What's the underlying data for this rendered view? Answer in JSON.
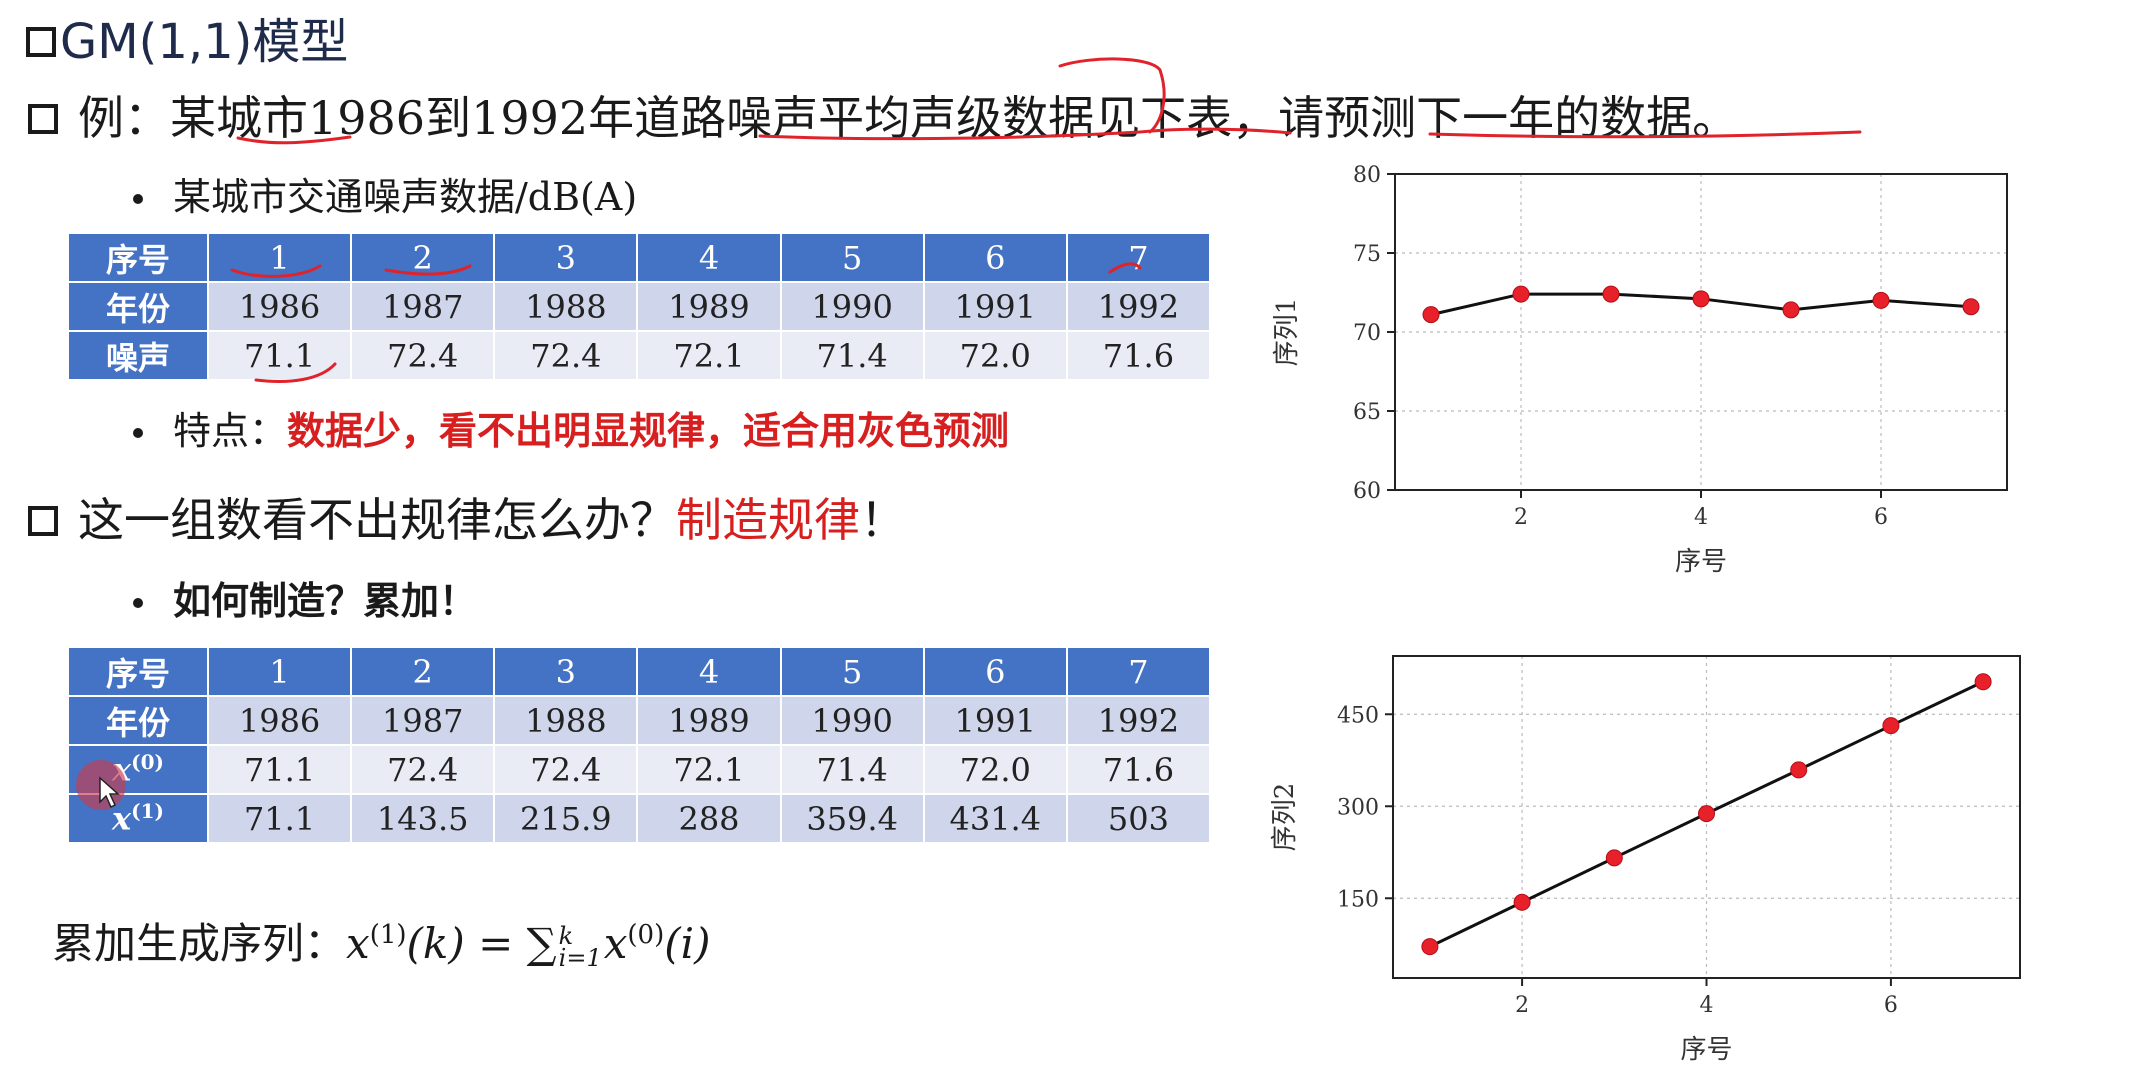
{
  "title": "GM(1,1)模型",
  "example": {
    "prefix": "例：",
    "text": "某城市1986到1992年道路噪声平均声级数据见下表，请预测下一年的数据。"
  },
  "table1_caption": "某城市交通噪声数据/dB(A)",
  "table1": {
    "header_label": "序号",
    "columns": [
      "1",
      "2",
      "3",
      "4",
      "5",
      "6",
      "7"
    ],
    "rows": [
      {
        "label": "年份",
        "values": [
          "1986",
          "1987",
          "1988",
          "1989",
          "1990",
          "1991",
          "1992"
        ]
      },
      {
        "label": "噪声",
        "values": [
          "71.1",
          "72.4",
          "72.4",
          "72.1",
          "71.4",
          "72.0",
          "71.6"
        ]
      }
    ]
  },
  "feature": {
    "label": "特点：",
    "text": "数据少，看不出明显规律，适合用灰色预测"
  },
  "question": {
    "text": "这一组数看不出规律怎么办？",
    "answer": "制造规律",
    "exclaim": "！"
  },
  "how": "如何制造？累加！",
  "table2": {
    "header_label": "序号",
    "columns": [
      "1",
      "2",
      "3",
      "4",
      "5",
      "6",
      "7"
    ],
    "rows": [
      {
        "label": "年份",
        "values": [
          "1986",
          "1987",
          "1988",
          "1989",
          "1990",
          "1991",
          "1992"
        ]
      },
      {
        "label": "x(0)",
        "values": [
          "71.1",
          "72.4",
          "72.4",
          "72.1",
          "71.4",
          "72.0",
          "71.6"
        ]
      },
      {
        "label": "x(1)",
        "values": [
          "71.1",
          "143.5",
          "215.9",
          "288",
          "359.4",
          "431.4",
          "503"
        ]
      }
    ]
  },
  "formula_label": "累加生成序列：",
  "colors": {
    "header_blue": "#4472c4",
    "row_dark": "#cfd5ea",
    "row_light": "#e9ebf5",
    "accent_red": "#d71f1f",
    "marker_red": "#e8202a"
  },
  "chart_data": [
    {
      "type": "line",
      "xlabel": "序号",
      "ylabel": "序列1",
      "x": [
        1,
        2,
        3,
        4,
        5,
        6,
        7
      ],
      "series": [
        {
          "values": [
            71.1,
            72.4,
            72.4,
            72.1,
            71.4,
            72.0,
            71.6
          ]
        }
      ],
      "xlim": [
        0.6,
        7.4
      ],
      "ylim": [
        60,
        80
      ],
      "xticks": [
        2,
        4,
        6
      ],
      "yticks": [
        60,
        65,
        70,
        75,
        80
      ],
      "grid": true
    },
    {
      "type": "line",
      "xlabel": "序号",
      "ylabel": "序列2",
      "x": [
        1,
        2,
        3,
        4,
        5,
        6,
        7
      ],
      "series": [
        {
          "values": [
            71.1,
            143.5,
            215.9,
            288,
            359.4,
            431.4,
            503
          ]
        }
      ],
      "xlim": [
        0.6,
        7.4
      ],
      "ylim": [
        20,
        545
      ],
      "xticks": [
        2,
        4,
        6
      ],
      "yticks": [
        150,
        300,
        450
      ],
      "grid": true
    }
  ]
}
